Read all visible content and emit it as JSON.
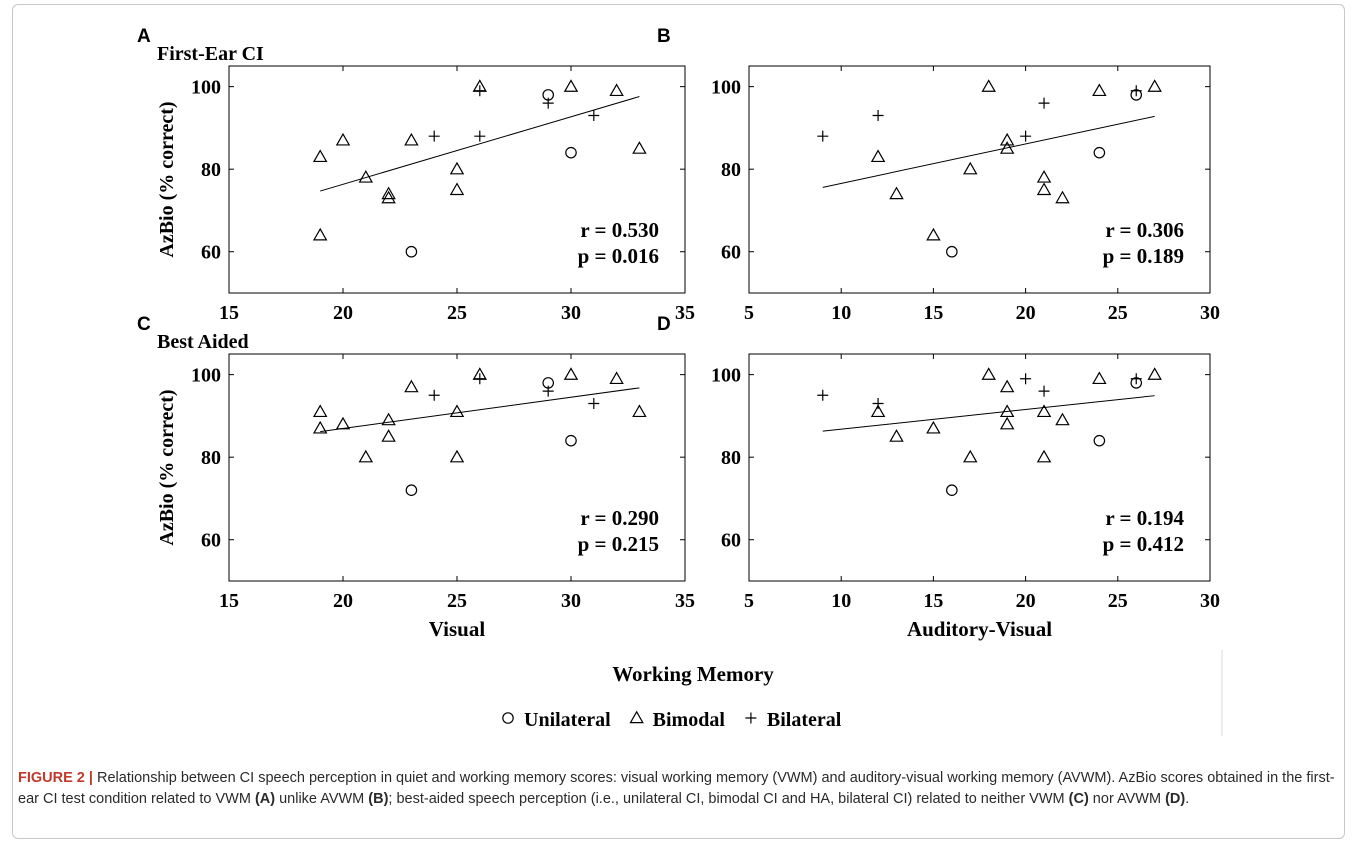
{
  "figure": {
    "xlabel_common": "Working Memory",
    "legend": [
      {
        "marker": "circle",
        "label": "Unilateral"
      },
      {
        "marker": "triangle",
        "label": "Bimodal"
      },
      {
        "marker": "plus",
        "label": "Bilateral"
      }
    ]
  },
  "caption": {
    "label": "FIGURE 2 |",
    "text_1": " Relationship between CI speech perception in quiet and working memory scores: visual working memory (VWM) and auditory-visual working memory (AVWM). AzBio scores obtained in the first-ear CI test condition related to VWM ",
    "ref_a": "(A)",
    "text_2": " unlike AVWM ",
    "ref_b": "(B)",
    "text_3": "; best-aided speech perception (i.e., unilateral CI, bimodal CI and HA, bilateral CI) related to neither VWM ",
    "ref_c": "(C)",
    "text_4": " nor AVWM ",
    "ref_d": "(D)",
    "text_5": "."
  },
  "chart_data": [
    {
      "panel": "A",
      "type": "scatter",
      "title": "First-Ear CI",
      "xlabel": "",
      "ylabel": "AzBio (% correct)",
      "xlim": [
        15,
        35
      ],
      "ylim": [
        50,
        105
      ],
      "xticks": [
        15,
        20,
        25,
        30,
        35
      ],
      "yticks": [
        60,
        80,
        100
      ],
      "stats": [
        "r = 0.530",
        "p = 0.016"
      ],
      "fit_line": {
        "x": [
          19,
          33
        ],
        "y": [
          74.7,
          97.6
        ]
      },
      "series": [
        {
          "name": "Unilateral",
          "marker": "circle",
          "points": [
            [
              23,
              60
            ],
            [
              29,
              98
            ],
            [
              30,
              84
            ]
          ]
        },
        {
          "name": "Bimodal",
          "marker": "triangle",
          "points": [
            [
              19,
              64
            ],
            [
              19,
              83
            ],
            [
              20,
              87
            ],
            [
              21,
              78
            ],
            [
              22,
              73
            ],
            [
              22,
              74
            ],
            [
              23,
              87
            ],
            [
              25,
              75
            ],
            [
              25,
              80
            ],
            [
              26,
              100
            ],
            [
              30,
              100
            ],
            [
              32,
              99
            ],
            [
              33,
              85
            ]
          ]
        },
        {
          "name": "Bilateral",
          "marker": "plus",
          "points": [
            [
              24,
              88
            ],
            [
              26,
              88
            ],
            [
              26,
              99
            ],
            [
              29,
              96
            ],
            [
              31,
              93
            ]
          ]
        }
      ]
    },
    {
      "panel": "B",
      "type": "scatter",
      "title": "",
      "xlabel": "",
      "ylabel": "",
      "xlim": [
        5,
        30
      ],
      "ylim": [
        50,
        105
      ],
      "xticks": [
        5,
        10,
        15,
        20,
        25,
        30
      ],
      "yticks": [
        60,
        80,
        100
      ],
      "stats": [
        "r = 0.306",
        "p = 0.189"
      ],
      "fit_line": {
        "x": [
          9,
          27
        ],
        "y": [
          75.6,
          92.8
        ]
      },
      "series": [
        {
          "name": "Unilateral",
          "marker": "circle",
          "points": [
            [
              16,
              60
            ],
            [
              24,
              84
            ],
            [
              26,
              98
            ]
          ]
        },
        {
          "name": "Bimodal",
          "marker": "triangle",
          "points": [
            [
              12,
              83
            ],
            [
              13,
              74
            ],
            [
              15,
              64
            ],
            [
              17,
              80
            ],
            [
              18,
              100
            ],
            [
              19,
              85
            ],
            [
              19,
              87
            ],
            [
              21,
              75
            ],
            [
              21,
              78
            ],
            [
              22,
              73
            ],
            [
              24,
              99
            ],
            [
              27,
              100
            ]
          ]
        },
        {
          "name": "Bilateral",
          "marker": "plus",
          "points": [
            [
              9,
              88
            ],
            [
              12,
              93
            ],
            [
              20,
              88
            ],
            [
              21,
              96
            ],
            [
              26,
              99
            ]
          ]
        }
      ]
    },
    {
      "panel": "C",
      "type": "scatter",
      "title": "Best Aided",
      "xlabel": "Visual",
      "ylabel": "AzBio (% correct)",
      "xlim": [
        15,
        35
      ],
      "ylim": [
        50,
        105
      ],
      "xticks": [
        15,
        20,
        25,
        30,
        35
      ],
      "yticks": [
        60,
        80,
        100
      ],
      "stats": [
        "r = 0.290",
        "p = 0.215"
      ],
      "fit_line": {
        "x": [
          19,
          33
        ],
        "y": [
          86.2,
          96.8
        ]
      },
      "series": [
        {
          "name": "Unilateral",
          "marker": "circle",
          "points": [
            [
              23,
              72
            ],
            [
              29,
              98
            ],
            [
              30,
              84
            ]
          ]
        },
        {
          "name": "Bimodal",
          "marker": "triangle",
          "points": [
            [
              19,
              87
            ],
            [
              19,
              91
            ],
            [
              20,
              88
            ],
            [
              21,
              80
            ],
            [
              22,
              85
            ],
            [
              22,
              89
            ],
            [
              23,
              97
            ],
            [
              25,
              80
            ],
            [
              25,
              91
            ],
            [
              26,
              100
            ],
            [
              30,
              100
            ],
            [
              32,
              99
            ],
            [
              33,
              91
            ]
          ]
        },
        {
          "name": "Bilateral",
          "marker": "plus",
          "points": [
            [
              24,
              95
            ],
            [
              26,
              99
            ],
            [
              29,
              96
            ],
            [
              31,
              93
            ]
          ]
        }
      ]
    },
    {
      "panel": "D",
      "type": "scatter",
      "title": "",
      "xlabel": "Auditory-Visual",
      "ylabel": "",
      "xlim": [
        5,
        30
      ],
      "ylim": [
        50,
        105
      ],
      "xticks": [
        5,
        10,
        15,
        20,
        25,
        30
      ],
      "yticks": [
        60,
        80,
        100
      ],
      "stats": [
        "r = 0.194",
        "p = 0.412"
      ],
      "fit_line": {
        "x": [
          9,
          27
        ],
        "y": [
          86.3,
          94.9
        ]
      },
      "series": [
        {
          "name": "Unilateral",
          "marker": "circle",
          "points": [
            [
              16,
              72
            ],
            [
              24,
              84
            ],
            [
              26,
              98
            ]
          ]
        },
        {
          "name": "Bimodal",
          "marker": "triangle",
          "points": [
            [
              12,
              91
            ],
            [
              13,
              85
            ],
            [
              15,
              87
            ],
            [
              17,
              80
            ],
            [
              18,
              100
            ],
            [
              19,
              88
            ],
            [
              19,
              91
            ],
            [
              19,
              97
            ],
            [
              21,
              80
            ],
            [
              21,
              91
            ],
            [
              22,
              89
            ],
            [
              24,
              99
            ],
            [
              27,
              100
            ]
          ]
        },
        {
          "name": "Bilateral",
          "marker": "plus",
          "points": [
            [
              9,
              95
            ],
            [
              12,
              93
            ],
            [
              20,
              99
            ],
            [
              21,
              96
            ],
            [
              26,
              99
            ]
          ]
        }
      ]
    }
  ]
}
